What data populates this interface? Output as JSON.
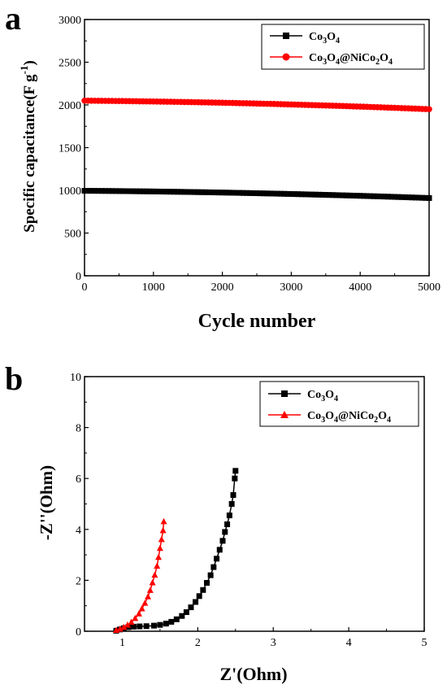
{
  "chart_data": [
    {
      "panel_label": "a",
      "type": "scatter",
      "xlabel": "Cycle number",
      "ylabel": "Specific capacitance(F g-1)",
      "ylabel_parts": {
        "main": "Specific capacitance(F g",
        "sup": "-1",
        "close": ")"
      },
      "xlim": [
        0,
        5000
      ],
      "ylim": [
        0,
        3000
      ],
      "xticks": [
        0,
        1000,
        2000,
        3000,
        4000,
        5000
      ],
      "yticks": [
        0,
        500,
        1000,
        1500,
        2000,
        2500,
        3000
      ],
      "legend_position": "top-right",
      "grid": false,
      "series": [
        {
          "name": "Co3O4",
          "name_parts": [
            [
              "Co",
              ""
            ],
            [
              "3",
              "sub"
            ],
            [
              "O",
              ""
            ],
            [
              "4",
              "sub"
            ]
          ],
          "color": "#000000",
          "marker": "square",
          "x_start": 0,
          "x_end": 5000,
          "n_points": 101,
          "y_start": 995,
          "y_end": 910
        },
        {
          "name": "Co3O4@NiCo2O4",
          "name_parts": [
            [
              "Co",
              ""
            ],
            [
              "3",
              "sub"
            ],
            [
              "O",
              ""
            ],
            [
              "4",
              "sub"
            ],
            [
              "@NiCo",
              ""
            ],
            [
              "2",
              "sub"
            ],
            [
              "O",
              ""
            ],
            [
              "4",
              "sub"
            ]
          ],
          "color": "#ff0000",
          "marker": "circle",
          "x_start": 0,
          "x_end": 5000,
          "n_points": 101,
          "y_start": 2050,
          "y_end": 1950
        }
      ]
    },
    {
      "panel_label": "b",
      "type": "line",
      "xlabel": "Z'(Ohm)",
      "ylabel": "-Z''(Ohm)",
      "xlim": [
        0.5,
        5
      ],
      "ylim": [
        0,
        10
      ],
      "xticks": [
        1,
        2,
        3,
        4,
        5
      ],
      "yticks": [
        0,
        2,
        4,
        6,
        8,
        10
      ],
      "legend_position": "top-right",
      "grid": false,
      "series": [
        {
          "name": "Co3O4",
          "name_parts": [
            [
              "Co",
              ""
            ],
            [
              "3",
              "sub"
            ],
            [
              "O",
              ""
            ],
            [
              "4",
              "sub"
            ]
          ],
          "color": "#000000",
          "marker": "square",
          "points": [
            [
              0.92,
              0.02
            ],
            [
              0.97,
              0.07
            ],
            [
              1.02,
              0.12
            ],
            [
              1.08,
              0.16
            ],
            [
              1.15,
              0.18
            ],
            [
              1.23,
              0.19
            ],
            [
              1.32,
              0.2
            ],
            [
              1.42,
              0.22
            ],
            [
              1.5,
              0.25
            ],
            [
              1.58,
              0.3
            ],
            [
              1.65,
              0.37
            ],
            [
              1.72,
              0.47
            ],
            [
              1.79,
              0.6
            ],
            [
              1.85,
              0.75
            ],
            [
              1.91,
              0.94
            ],
            [
              1.97,
              1.15
            ],
            [
              2.02,
              1.38
            ],
            [
              2.07,
              1.62
            ],
            [
              2.12,
              1.9
            ],
            [
              2.17,
              2.2
            ],
            [
              2.21,
              2.52
            ],
            [
              2.25,
              2.85
            ],
            [
              2.29,
              3.2
            ],
            [
              2.33,
              3.55
            ],
            [
              2.36,
              3.9
            ],
            [
              2.39,
              4.2
            ],
            [
              2.42,
              4.55
            ],
            [
              2.45,
              5.0
            ],
            [
              2.47,
              5.35
            ],
            [
              2.49,
              6.0
            ],
            [
              2.5,
              6.3
            ]
          ]
        },
        {
          "name": "Co3O4@NiCo2O4",
          "name_parts": [
            [
              "Co",
              ""
            ],
            [
              "3",
              "sub"
            ],
            [
              "O",
              ""
            ],
            [
              "4",
              "sub"
            ],
            [
              "@NiCo",
              ""
            ],
            [
              "2",
              "sub"
            ],
            [
              "O",
              ""
            ],
            [
              "4",
              "sub"
            ]
          ],
          "color": "#ff0000",
          "marker": "triangle",
          "points": [
            [
              0.92,
              0.03
            ],
            [
              0.97,
              0.08
            ],
            [
              1.02,
              0.15
            ],
            [
              1.07,
              0.24
            ],
            [
              1.12,
              0.35
            ],
            [
              1.17,
              0.5
            ],
            [
              1.22,
              0.68
            ],
            [
              1.26,
              0.88
            ],
            [
              1.3,
              1.1
            ],
            [
              1.34,
              1.35
            ],
            [
              1.37,
              1.6
            ],
            [
              1.4,
              1.9
            ],
            [
              1.43,
              2.2
            ],
            [
              1.46,
              2.55
            ],
            [
              1.48,
              2.9
            ],
            [
              1.5,
              3.25
            ],
            [
              1.52,
              3.6
            ],
            [
              1.54,
              3.95
            ],
            [
              1.55,
              4.3
            ]
          ]
        }
      ]
    }
  ]
}
